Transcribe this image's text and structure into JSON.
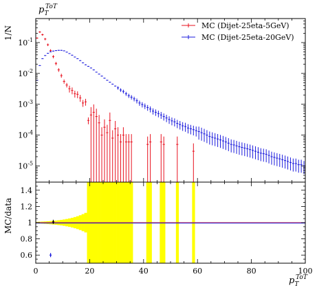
{
  "chart_data": {
    "type": "scatter",
    "title": "",
    "xlabel": "p_T^{ToT}",
    "ylabel_main": "1/N",
    "ylabel_main_sub": "p_T^{ToT}",
    "ylabel_ratio": "MC/data",
    "xlim": [
      0,
      100
    ],
    "ylim_main": [
      3e-06,
      0.6
    ],
    "yscale_main": "log",
    "ylim_ratio": [
      0.5,
      1.5
    ],
    "grid": false,
    "legend_position": "top-right",
    "x_ticks": [
      "0",
      "20",
      "40",
      "60",
      "80",
      "100"
    ],
    "y_ticks_main": [
      "10^{-5}",
      "10^{-4}",
      "10^{-3}",
      "10^{-2}",
      "10^{-1}"
    ],
    "y_ticks_ratio": [
      "0.6",
      "0.8",
      "1",
      "1.2",
      "1.4"
    ],
    "series": [
      {
        "name": "MC (Dijet-25eta-5GeV)",
        "color": "#e8101e",
        "points": [
          [
            0.5,
            0.14
          ],
          [
            1.5,
            0.22
          ],
          [
            2.5,
            0.18
          ],
          [
            3.5,
            0.13
          ],
          [
            4.5,
            0.085
          ],
          [
            5.5,
            0.055
          ],
          [
            6.5,
            0.035
          ],
          [
            7.5,
            0.021
          ],
          [
            8.5,
            0.013
          ],
          [
            9.5,
            0.0085
          ],
          [
            10.5,
            0.0055
          ],
          [
            11.5,
            0.0042
          ],
          [
            12.5,
            0.0032
          ],
          [
            13.5,
            0.0028
          ],
          [
            14.5,
            0.0022
          ],
          [
            15.5,
            0.0021
          ],
          [
            16.5,
            0.0016
          ],
          [
            17.5,
            0.0011
          ],
          [
            18.5,
            0.0012
          ],
          [
            19.5,
            0.0003
          ],
          [
            20.5,
            0.00045
          ],
          [
            21.5,
            0.00055
          ],
          [
            22.5,
            0.0004
          ],
          [
            23.5,
            0.00025
          ],
          [
            24.5,
            0.0001
          ],
          [
            25.5,
            0.00018
          ],
          [
            26.5,
            0.00012
          ],
          [
            27.5,
            0.0003
          ],
          [
            28.5,
            8e-05
          ],
          [
            29.5,
            0.00016
          ],
          [
            30.5,
            0.0001
          ],
          [
            31.5,
            6e-05
          ],
          [
            32.5,
            0.0001
          ],
          [
            33.5,
            6e-05
          ],
          [
            34.5,
            6e-05
          ],
          [
            35.5,
            6e-05
          ],
          [
            41.5,
            5e-05
          ],
          [
            42.5,
            6e-05
          ],
          [
            46.5,
            6e-05
          ],
          [
            47.5,
            5e-05
          ],
          [
            52.5,
            5e-05
          ],
          [
            58.5,
            3e-05
          ]
        ]
      },
      {
        "name": "MC (Dijet-25eta-20GeV)",
        "color": "#1a1adc",
        "points": [
          [
            0.5,
            0.006
          ],
          [
            1.5,
            0.018
          ],
          [
            2.5,
            0.03
          ],
          [
            3.5,
            0.038
          ],
          [
            4.5,
            0.045
          ],
          [
            5.5,
            0.05
          ],
          [
            6.5,
            0.053
          ],
          [
            7.5,
            0.055
          ],
          [
            8.5,
            0.056
          ],
          [
            9.5,
            0.056
          ],
          [
            10.5,
            0.054
          ],
          [
            11.5,
            0.049
          ],
          [
            12.5,
            0.044
          ],
          [
            13.5,
            0.039
          ],
          [
            14.5,
            0.034
          ],
          [
            15.5,
            0.03
          ],
          [
            16.5,
            0.026
          ],
          [
            17.5,
            0.022
          ],
          [
            18.5,
            0.019
          ],
          [
            19.5,
            0.017
          ],
          [
            20.5,
            0.015
          ],
          [
            21.5,
            0.013
          ],
          [
            22.5,
            0.011
          ],
          [
            23.5,
            0.0095
          ],
          [
            24.5,
            0.0082
          ],
          [
            25.5,
            0.007
          ],
          [
            26.5,
            0.006
          ],
          [
            27.5,
            0.0052
          ],
          [
            28.5,
            0.0045
          ],
          [
            29.5,
            0.0039
          ],
          [
            30.5,
            0.0034
          ],
          [
            31.5,
            0.0029
          ],
          [
            32.5,
            0.0026
          ],
          [
            33.5,
            0.0022
          ],
          [
            34.5,
            0.0019
          ],
          [
            35.5,
            0.0017
          ],
          [
            36.5,
            0.0015
          ],
          [
            37.5,
            0.0013
          ],
          [
            38.5,
            0.0011
          ],
          [
            39.5,
            0.00098
          ],
          [
            40.5,
            0.00088
          ],
          [
            41.5,
            0.00078
          ],
          [
            42.5,
            0.0007
          ],
          [
            43.5,
            0.0006
          ],
          [
            44.5,
            0.00055
          ],
          [
            45.5,
            0.0005
          ],
          [
            46.5,
            0.00045
          ],
          [
            47.5,
            0.0004
          ],
          [
            48.5,
            0.00036
          ],
          [
            49.5,
            0.00032
          ],
          [
            50.5,
            0.00029
          ],
          [
            51.5,
            0.00027
          ],
          [
            52.5,
            0.00024
          ],
          [
            53.5,
            0.00022
          ],
          [
            54.5,
            0.0002
          ],
          [
            55.5,
            0.00019
          ],
          [
            56.5,
            0.00017
          ],
          [
            57.5,
            0.00016
          ],
          [
            58.5,
            0.00015
          ],
          [
            59.5,
            0.00014
          ],
          [
            60.5,
            0.00013
          ],
          [
            61.5,
            0.00012
          ],
          [
            62.5,
            0.00011
          ],
          [
            63.5,
            0.0001
          ],
          [
            64.5,
            9e-05
          ],
          [
            65.5,
            8.5e-05
          ],
          [
            66.5,
            8e-05
          ],
          [
            67.5,
            7.5e-05
          ],
          [
            68.5,
            7e-05
          ],
          [
            69.5,
            6.5e-05
          ],
          [
            70.5,
            6e-05
          ],
          [
            71.5,
            5.5e-05
          ],
          [
            72.5,
            5e-05
          ],
          [
            73.5,
            4.8e-05
          ],
          [
            74.5,
            4.5e-05
          ],
          [
            75.5,
            4.2e-05
          ],
          [
            76.5,
            4e-05
          ],
          [
            77.5,
            3.8e-05
          ],
          [
            78.5,
            3.6e-05
          ],
          [
            79.5,
            3.4e-05
          ],
          [
            80.5,
            3.2e-05
          ],
          [
            81.5,
            3e-05
          ],
          [
            82.5,
            2.8e-05
          ],
          [
            83.5,
            2.6e-05
          ],
          [
            84.5,
            2.5e-05
          ],
          [
            85.5,
            2.4e-05
          ],
          [
            86.5,
            2.2e-05
          ],
          [
            87.5,
            2e-05
          ],
          [
            88.5,
            1.9e-05
          ],
          [
            89.5,
            1.8e-05
          ],
          [
            90.5,
            1.7e-05
          ],
          [
            91.5,
            1.6e-05
          ],
          [
            92.5,
            1.5e-05
          ],
          [
            93.5,
            1.4e-05
          ],
          [
            94.5,
            1.3e-05
          ],
          [
            95.5,
            1.2e-05
          ],
          [
            96.5,
            1.2e-05
          ],
          [
            97.5,
            1.1e-05
          ],
          [
            98.5,
            1.1e-05
          ],
          [
            99.5,
            1e-05
          ]
        ]
      }
    ],
    "ratio_points": [
      {
        "series": "MC (Dijet-25eta-5GeV)",
        "x": 6.5,
        "y": 1.01
      },
      {
        "series": "MC (Dijet-25eta-20GeV)",
        "x": 5.5,
        "y": 0.6
      }
    ],
    "ratio_band_color": "#ffff00"
  }
}
